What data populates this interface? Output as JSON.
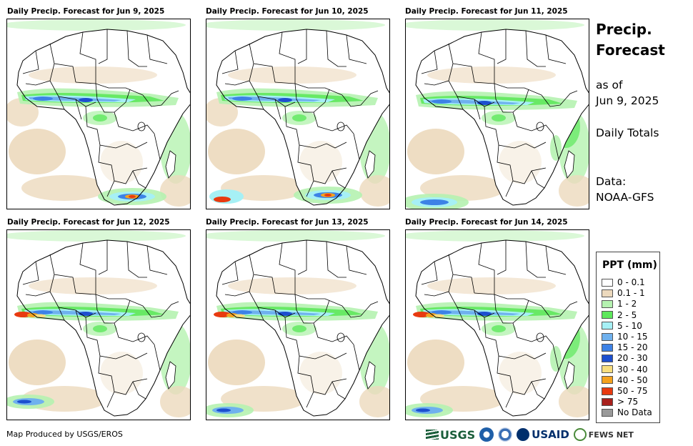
{
  "panels": [
    {
      "title": "Daily Precip. Forecast for Jun 9, 2025"
    },
    {
      "title": "Daily Precip. Forecast for Jun 10, 2025"
    },
    {
      "title": "Daily Precip. Forecast for Jun 11, 2025"
    },
    {
      "title": "Daily Precip. Forecast for Jun 12, 2025"
    },
    {
      "title": "Daily Precip. Forecast for Jun 13, 2025"
    },
    {
      "title": "Daily Precip. Forecast for Jun 14, 2025"
    }
  ],
  "side": {
    "title_line1": "Precip.",
    "title_line2": "Forecast",
    "asof_line1": "as of",
    "asof_line2": "Jun 9, 2025",
    "totals": "Daily Totals",
    "data_line1": "Data:",
    "data_line2": "NOAA-GFS"
  },
  "legend": {
    "title": "PPT (mm)",
    "items": [
      {
        "label": "0 - 0.1",
        "color": "#ffffff"
      },
      {
        "label": "0.1 - 1",
        "color": "#ecd9bd"
      },
      {
        "label": "1 - 2",
        "color": "#b5f2b0"
      },
      {
        "label": "2 - 5",
        "color": "#5ee85c"
      },
      {
        "label": "5 - 10",
        "color": "#a6f0f5"
      },
      {
        "label": "10 - 15",
        "color": "#6fb1ee"
      },
      {
        "label": "15 - 20",
        "color": "#3d82e6"
      },
      {
        "label": "20 - 30",
        "color": "#1c4fcf"
      },
      {
        "label": "30 - 40",
        "color": "#f7de7e"
      },
      {
        "label": "40 - 50",
        "color": "#f4a21e"
      },
      {
        "label": "50 - 75",
        "color": "#e83a10"
      },
      {
        "label": "> 75",
        "color": "#a8201c"
      },
      {
        "label": "No Data",
        "color": "#999999"
      }
    ]
  },
  "footer": {
    "credit": "Map Produced by USGS/EROS",
    "logo_usgs": "USGS",
    "logo_usaid": "USAID",
    "logo_fews": "FEWS NET"
  }
}
